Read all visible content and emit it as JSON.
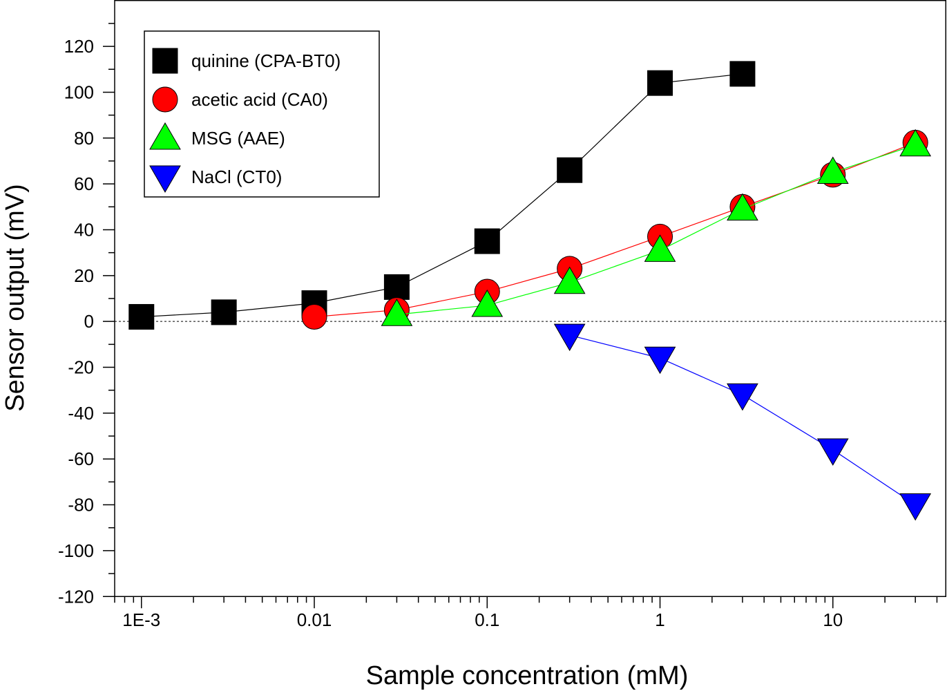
{
  "chart_data": {
    "type": "scatter",
    "xlabel": "Sample concentration (mM)",
    "ylabel": "Sensor output (mV)",
    "xscale": "log",
    "xlim": [
      0.0007,
      45
    ],
    "ylim": [
      -120,
      140
    ],
    "x_ticks": [
      {
        "value": 0.001,
        "label": "1E-3"
      },
      {
        "value": 0.01,
        "label": "0.01"
      },
      {
        "value": 0.1,
        "label": "0.1"
      },
      {
        "value": 1,
        "label": "1"
      },
      {
        "value": 10,
        "label": "10"
      }
    ],
    "y_ticks": [
      {
        "value": -120,
        "label": "-120"
      },
      {
        "value": -100,
        "label": "-100"
      },
      {
        "value": -80,
        "label": "-80"
      },
      {
        "value": -60,
        "label": "-60"
      },
      {
        "value": -40,
        "label": "-40"
      },
      {
        "value": -20,
        "label": "-20"
      },
      {
        "value": 0,
        "label": "0"
      },
      {
        "value": 20,
        "label": "20"
      },
      {
        "value": 40,
        "label": "40"
      },
      {
        "value": 60,
        "label": "60"
      },
      {
        "value": 80,
        "label": "80"
      },
      {
        "value": 100,
        "label": "100"
      },
      {
        "value": 120,
        "label": "120"
      }
    ],
    "reference_line": {
      "y": 0,
      "style": "dotted"
    },
    "legend_position": "top-left",
    "series": [
      {
        "name": "quinine (CPA-BT0)",
        "marker": "square",
        "color": "#000000",
        "line_color": "#000000",
        "x": [
          0.001,
          0.003,
          0.01,
          0.03,
          0.1,
          0.3,
          1,
          3
        ],
        "y": [
          2,
          4,
          8,
          15,
          35,
          66,
          104,
          108
        ]
      },
      {
        "name": "acetic acid (CA0)",
        "marker": "circle",
        "color": "#ff0000",
        "line_color": "#ff0000",
        "x": [
          0.01,
          0.03,
          0.1,
          0.3,
          1,
          3,
          10,
          30
        ],
        "y": [
          2,
          5,
          13,
          23,
          37,
          50,
          64,
          78
        ]
      },
      {
        "name": "MSG (AAE)",
        "marker": "triangle-up",
        "color": "#00ff00",
        "line_color": "#00ff00",
        "x": [
          0.03,
          0.1,
          0.3,
          1,
          3,
          10,
          30
        ],
        "y": [
          3,
          7,
          17,
          31,
          49,
          65,
          77
        ]
      },
      {
        "name": "NaCl (CT0)",
        "marker": "triangle-down",
        "color": "#0000ff",
        "line_color": "#0000ff",
        "x": [
          0.3,
          1,
          3,
          10,
          30
        ],
        "y": [
          -6,
          -16,
          -32,
          -56,
          -80
        ]
      }
    ]
  }
}
